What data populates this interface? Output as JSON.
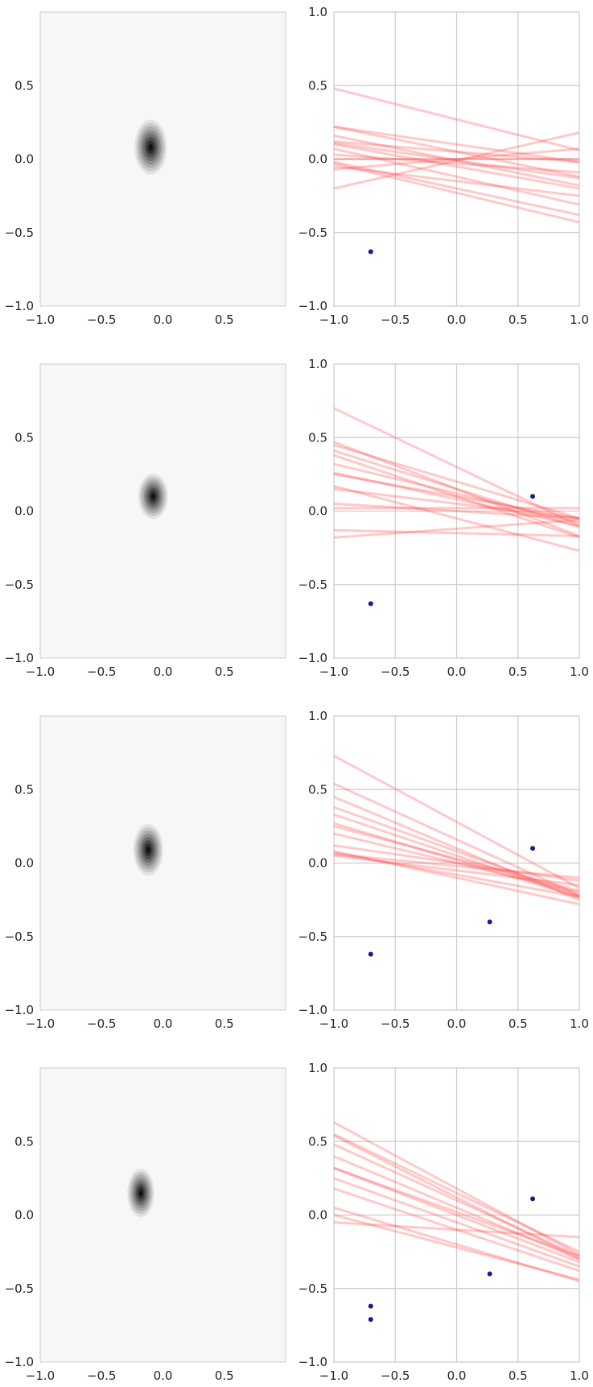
{
  "chart_data": [
    {
      "type": "contour",
      "panel": "posterior-1",
      "xlim": [
        -1,
        1
      ],
      "ylim": [
        -1,
        1
      ],
      "xticks": [
        "−1.0",
        "−0.5",
        "0.0",
        "0.5"
      ],
      "yticks": [
        "−1.0",
        "−0.5",
        "0.0",
        "0.5"
      ],
      "grid": false,
      "colormap": "greys",
      "mean": [
        -0.1,
        0.08
      ],
      "std": [
        0.06,
        0.085
      ]
    },
    {
      "type": "line+scatter",
      "panel": "samples-1",
      "xlim": [
        -1,
        1
      ],
      "ylim": [
        -1,
        1
      ],
      "xticks": [
        "−1.0",
        "−0.5",
        "0.0",
        "0.5",
        "1.0"
      ],
      "yticks": [
        "−1.0",
        "−0.5",
        "0.0",
        "0.5",
        "1.0"
      ],
      "grid": true,
      "line_color": "#ff4d4d",
      "point_color": "#1a1a8c",
      "lines": [
        [
          0.19,
          -0.01
        ],
        [
          0.07,
          0.0
        ],
        [
          -0.21,
          0.27
        ],
        [
          -0.12,
          0.1
        ],
        [
          -0.07,
          0.05
        ],
        [
          -0.17,
          0.05
        ],
        [
          -0.12,
          -0.01
        ],
        [
          -0.06,
          -0.03
        ],
        [
          -0.15,
          -0.05
        ],
        [
          -0.18,
          -0.2
        ],
        [
          -0.2,
          -0.23
        ],
        [
          -0.19,
          -0.12
        ],
        [
          -0.1,
          -0.15
        ],
        [
          -0.17,
          -0.01
        ],
        [
          0.0,
          0.0
        ]
      ],
      "points": [
        [
          -0.7,
          -0.63
        ]
      ]
    },
    {
      "type": "contour",
      "panel": "posterior-2",
      "xlim": [
        -1,
        1
      ],
      "ylim": [
        -1,
        1
      ],
      "xticks": [
        "−1.0",
        "−0.5",
        "0.0",
        "0.5"
      ],
      "yticks": [
        "−1.0",
        "−0.5",
        "0.0",
        "0.5"
      ],
      "grid": false,
      "colormap": "greys",
      "mean": [
        -0.08,
        0.1
      ],
      "std": [
        0.055,
        0.07
      ]
    },
    {
      "type": "line+scatter",
      "panel": "samples-2",
      "xlim": [
        -1,
        1
      ],
      "ylim": [
        -1,
        1
      ],
      "xticks": [
        "−1.0",
        "−0.5",
        "0.0",
        "0.5",
        "1.0"
      ],
      "yticks": [
        "−1.0",
        "−0.5",
        "0.0",
        "0.5",
        "1.0"
      ],
      "grid": true,
      "line_color": "#ff4d4d",
      "point_color": "#1a1a8c",
      "lines": [
        [
          -0.4,
          0.3
        ],
        [
          -0.25,
          0.2
        ],
        [
          -0.32,
          0.15
        ],
        [
          -0.2,
          0.12
        ],
        [
          -0.18,
          0.08
        ],
        [
          0.06,
          -0.12
        ],
        [
          -0.02,
          -0.15
        ],
        [
          -0.15,
          0.1
        ],
        [
          -0.22,
          -0.05
        ],
        [
          -0.26,
          0.15
        ],
        [
          -0.05,
          0.0
        ],
        [
          0.0,
          0.02
        ],
        [
          -0.1,
          0.05
        ],
        [
          -0.28,
          0.1
        ]
      ],
      "points": [
        [
          -0.7,
          -0.63
        ],
        [
          0.62,
          0.1
        ]
      ]
    },
    {
      "type": "contour",
      "panel": "posterior-3",
      "xlim": [
        -1,
        1
      ],
      "ylim": [
        -1,
        1
      ],
      "xticks": [
        "−1.0",
        "−0.5",
        "0.0",
        "0.5"
      ],
      "yticks": [
        "−1.0",
        "−0.5",
        "0.0",
        "0.5"
      ],
      "grid": false,
      "colormap": "greys",
      "mean": [
        -0.12,
        0.09
      ],
      "std": [
        0.055,
        0.08
      ]
    },
    {
      "type": "line+scatter",
      "panel": "samples-3",
      "xlim": [
        -1,
        1
      ],
      "ylim": [
        -1,
        1
      ],
      "xticks": [
        "−1.0",
        "−0.5",
        "0.0",
        "0.5",
        "1.0"
      ],
      "yticks": [
        "−1.0",
        "−0.5",
        "0.0",
        "0.5",
        "1.0"
      ],
      "grid": true,
      "line_color": "#ff4d4d",
      "point_color": "#1a1a8c",
      "lines": [
        [
          -0.45,
          0.28
        ],
        [
          -0.38,
          0.16
        ],
        [
          -0.3,
          0.08
        ],
        [
          -0.22,
          0.03
        ],
        [
          -0.2,
          0.0
        ],
        [
          -0.08,
          -0.02
        ],
        [
          -0.1,
          -0.05
        ],
        [
          -0.15,
          -0.08
        ],
        [
          -0.25,
          0.02
        ],
        [
          -0.12,
          0.0
        ],
        [
          -0.35,
          0.1
        ],
        [
          -0.18,
          -0.1
        ],
        [
          -0.28,
          0.05
        ]
      ],
      "points": [
        [
          -0.7,
          -0.62
        ],
        [
          0.27,
          -0.4
        ],
        [
          0.62,
          0.1
        ]
      ]
    },
    {
      "type": "contour",
      "panel": "posterior-4",
      "xlim": [
        -1,
        1
      ],
      "ylim": [
        -1,
        1
      ],
      "xticks": [
        "−1.0",
        "−0.5",
        "0.0",
        "0.5"
      ],
      "yticks": [
        "−1.0",
        "−0.5",
        "0.0",
        "0.5"
      ],
      "grid": false,
      "colormap": "greys",
      "mean": [
        -0.18,
        0.15
      ],
      "std": [
        0.05,
        0.075
      ]
    },
    {
      "type": "line+scatter",
      "panel": "samples-4",
      "xlim": [
        -1,
        1
      ],
      "ylim": [
        -1,
        1
      ],
      "xticks": [
        "−1.0",
        "−0.5",
        "0.0",
        "0.5",
        "1.0"
      ],
      "yticks": [
        "−1.0",
        "−0.5",
        "0.0",
        "0.5",
        "1.0"
      ],
      "grid": true,
      "line_color": "#ff4d4d",
      "point_color": "#1a1a8c",
      "lines": [
        [
          -0.45,
          0.18
        ],
        [
          -0.42,
          0.12
        ],
        [
          -0.38,
          0.1
        ],
        [
          -0.35,
          0.05
        ],
        [
          -0.32,
          0.0
        ],
        [
          -0.3,
          -0.05
        ],
        [
          -0.28,
          -0.1
        ],
        [
          -0.25,
          -0.2
        ],
        [
          -0.22,
          -0.22
        ],
        [
          -0.4,
          0.15
        ],
        [
          -0.05,
          -0.1
        ],
        [
          -0.3,
          0.02
        ]
      ],
      "points": [
        [
          -0.7,
          -0.62
        ],
        [
          -0.7,
          -0.71
        ],
        [
          0.27,
          -0.4
        ],
        [
          0.62,
          0.11
        ]
      ]
    }
  ]
}
